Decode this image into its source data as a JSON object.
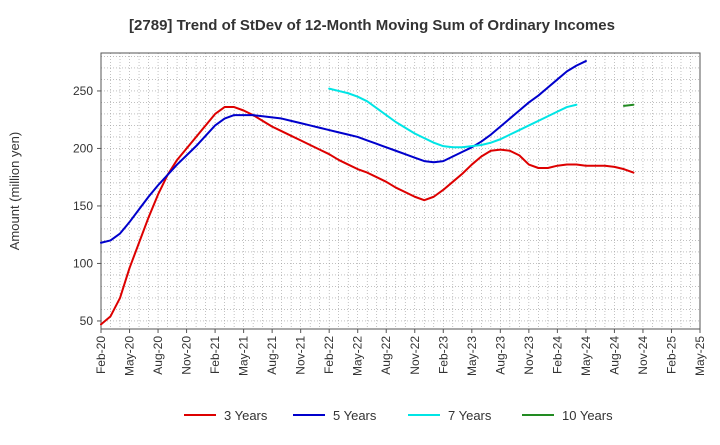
{
  "chart_data": {
    "type": "line",
    "title": "[2789]  Trend of StDev of 12-Month Moving Sum of Ordinary Incomes",
    "xlabel": "",
    "ylabel": "Amount (million yen)",
    "ylim": [
      43,
      283
    ],
    "yticks": [
      50,
      100,
      150,
      200,
      250
    ],
    "x_start": "Feb-20",
    "x_end": "May-25",
    "x_tick_labels": [
      "Feb-20",
      "May-20",
      "Aug-20",
      "Nov-20",
      "Feb-21",
      "May-21",
      "Aug-21",
      "Nov-21",
      "Feb-22",
      "May-22",
      "Aug-22",
      "Nov-22",
      "Feb-23",
      "May-23",
      "Aug-23",
      "Nov-23",
      "Feb-24",
      "May-24",
      "Aug-24",
      "Nov-24",
      "Feb-25",
      "May-25"
    ],
    "grid": true,
    "legend_position": "bottom",
    "series": [
      {
        "name": "3 Years",
        "color": "#dd0000",
        "start_index": 0,
        "values": [
          47,
          54,
          70,
          96,
          118,
          140,
          160,
          177,
          190,
          200,
          210,
          220,
          230,
          236,
          236,
          233,
          229,
          224,
          219,
          215,
          211,
          207,
          203,
          199,
          195,
          190,
          186,
          182,
          179,
          175,
          171,
          166,
          162,
          158,
          155,
          158,
          164,
          171,
          178,
          186,
          193,
          198,
          199,
          198,
          194,
          186,
          183,
          183,
          185,
          186,
          186,
          185,
          185,
          185,
          184,
          182,
          179
        ]
      },
      {
        "name": "5 Years",
        "color": "#0000cc",
        "start_index": 0,
        "values": [
          118,
          120,
          126,
          136,
          147,
          158,
          168,
          177,
          186,
          194,
          202,
          211,
          220,
          226,
          229,
          229,
          229,
          228,
          227,
          226,
          224,
          222,
          220,
          218,
          216,
          214,
          212,
          210,
          207,
          204,
          201,
          198,
          195,
          192,
          189,
          188,
          189,
          193,
          197,
          201,
          206,
          212,
          219,
          226,
          233,
          240,
          246,
          253,
          260,
          267,
          272,
          276
        ]
      },
      {
        "name": "7 Years",
        "color": "#00e5e5",
        "start_index": 24,
        "values": [
          252,
          250,
          248,
          245,
          241,
          235,
          229,
          223,
          218,
          213,
          209,
          205,
          202,
          201,
          201,
          202,
          203,
          205,
          208,
          212,
          216,
          220,
          224,
          228,
          232,
          236,
          238
        ]
      },
      {
        "name": "10 Years",
        "color": "#228b22",
        "start_index": 55,
        "values": [
          237,
          238
        ]
      }
    ]
  }
}
